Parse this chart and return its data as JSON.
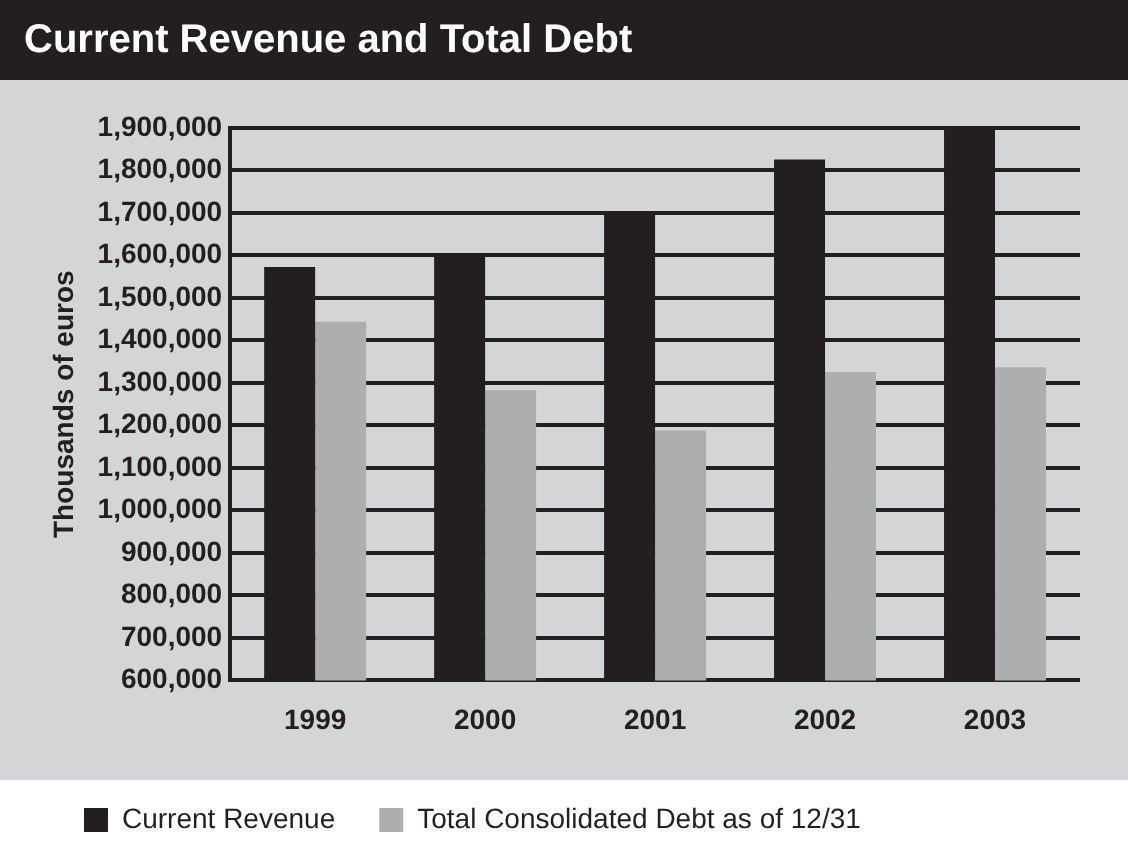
{
  "chart_data": {
    "type": "bar",
    "title": "Current Revenue and Total Debt",
    "ylabel": "Thousands of euros",
    "categories": [
      "1999",
      "2000",
      "2001",
      "2002",
      "2003"
    ],
    "series": [
      {
        "name": "Current Revenue",
        "color": "#231f20",
        "values": [
          1573000,
          1600000,
          1700000,
          1826000,
          1900000
        ]
      },
      {
        "name": "Total Consolidated Debt as of 12/31",
        "color": "#adaeb0",
        "values": [
          1444000,
          1283000,
          1188000,
          1326000,
          1337000
        ]
      }
    ],
    "ylim": [
      600000,
      1900000
    ],
    "yticks": [
      {
        "value": 600000,
        "label": "600,000"
      },
      {
        "value": 700000,
        "label": "700,000"
      },
      {
        "value": 800000,
        "label": "800,000"
      },
      {
        "value": 900000,
        "label": "900,000"
      },
      {
        "value": 1000000,
        "label": "1,000,000"
      },
      {
        "value": 1100000,
        "label": "1,100,000"
      },
      {
        "value": 1200000,
        "label": "1,200,000"
      },
      {
        "value": 1300000,
        "label": "1,300,000"
      },
      {
        "value": 1400000,
        "label": "1,400,000"
      },
      {
        "value": 1500000,
        "label": "1,500,000"
      },
      {
        "value": 1600000,
        "label": "1,600,000"
      },
      {
        "value": 1700000,
        "label": "1,700,000"
      },
      {
        "value": 1800000,
        "label": "1,800,000"
      },
      {
        "value": 1900000,
        "label": "1,900,000"
      }
    ],
    "grid": "y",
    "legend": "bottom"
  }
}
